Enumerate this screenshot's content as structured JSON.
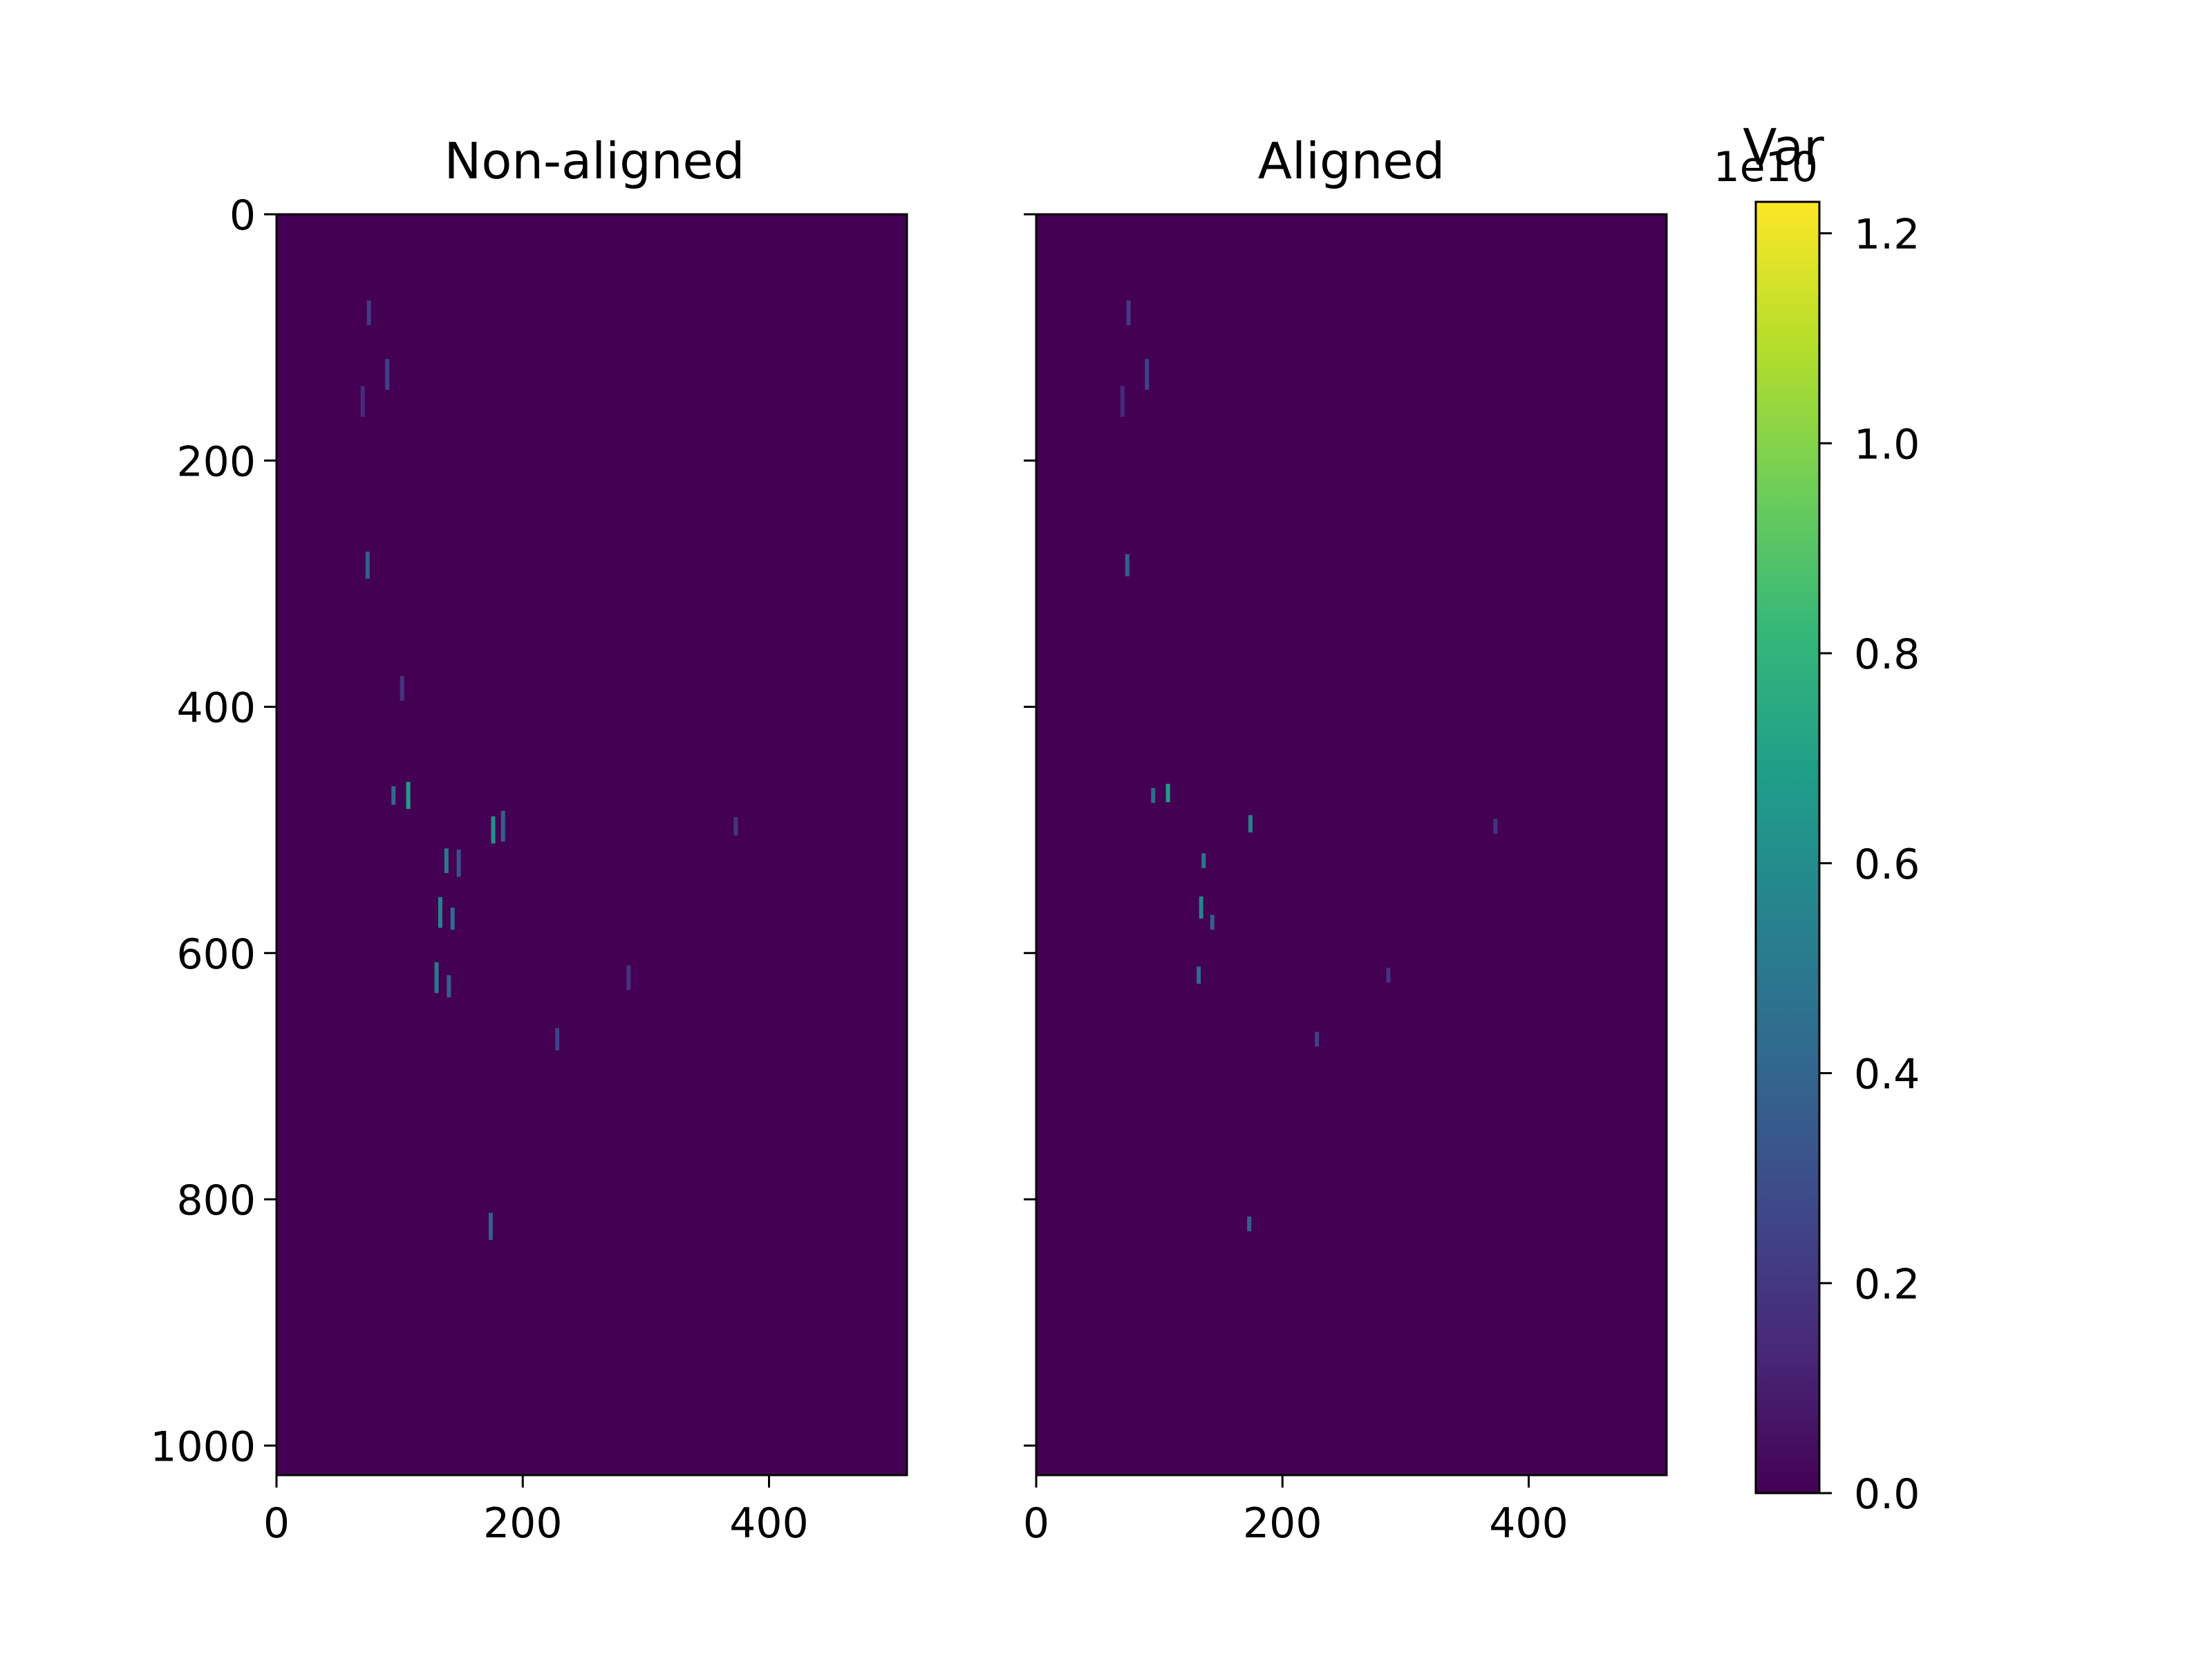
{
  "chart_data": [
    {
      "type": "heatmap",
      "title": "Non-aligned",
      "xlim": [
        0,
        512
      ],
      "ylim": [
        1024,
        0
      ],
      "xticks": [
        0,
        200,
        400
      ],
      "yticks": [
        0,
        200,
        400,
        600,
        800,
        1000
      ],
      "background_value": 0.0,
      "bright_spots": [
        {
          "x": 75,
          "y": 80,
          "h": 20,
          "v": 0.18
        },
        {
          "x": 90,
          "y": 130,
          "h": 25,
          "v": 0.2
        },
        {
          "x": 70,
          "y": 152,
          "h": 25,
          "v": 0.12
        },
        {
          "x": 74,
          "y": 285,
          "h": 22,
          "v": 0.3
        },
        {
          "x": 102,
          "y": 385,
          "h": 20,
          "v": 0.15
        },
        {
          "x": 95,
          "y": 472,
          "h": 15,
          "v": 0.35
        },
        {
          "x": 107,
          "y": 472,
          "h": 22,
          "v": 0.55
        },
        {
          "x": 176,
          "y": 500,
          "h": 22,
          "v": 0.5
        },
        {
          "x": 184,
          "y": 497,
          "h": 25,
          "v": 0.3
        },
        {
          "x": 138,
          "y": 525,
          "h": 20,
          "v": 0.4
        },
        {
          "x": 148,
          "y": 527,
          "h": 22,
          "v": 0.25
        },
        {
          "x": 133,
          "y": 567,
          "h": 25,
          "v": 0.45
        },
        {
          "x": 143,
          "y": 572,
          "h": 18,
          "v": 0.35
        },
        {
          "x": 130,
          "y": 620,
          "h": 25,
          "v": 0.4
        },
        {
          "x": 140,
          "y": 627,
          "h": 18,
          "v": 0.3
        },
        {
          "x": 228,
          "y": 670,
          "h": 18,
          "v": 0.2
        },
        {
          "x": 286,
          "y": 620,
          "h": 20,
          "v": 0.15
        },
        {
          "x": 373,
          "y": 497,
          "h": 15,
          "v": 0.15
        },
        {
          "x": 174,
          "y": 822,
          "h": 22,
          "v": 0.3
        }
      ]
    },
    {
      "type": "heatmap",
      "title": "Aligned",
      "xlim": [
        0,
        512
      ],
      "ylim": [
        1024,
        0
      ],
      "xticks": [
        0,
        200,
        400
      ],
      "yticks": [
        0,
        200,
        400,
        600,
        800,
        1000
      ],
      "background_value": 0.0,
      "bright_spots": [
        {
          "x": 75,
          "y": 80,
          "h": 20,
          "v": 0.18
        },
        {
          "x": 90,
          "y": 130,
          "h": 25,
          "v": 0.2
        },
        {
          "x": 70,
          "y": 152,
          "h": 25,
          "v": 0.12
        },
        {
          "x": 74,
          "y": 285,
          "h": 18,
          "v": 0.3
        },
        {
          "x": 95,
          "y": 472,
          "h": 12,
          "v": 0.35
        },
        {
          "x": 107,
          "y": 470,
          "h": 15,
          "v": 0.55
        },
        {
          "x": 174,
          "y": 495,
          "h": 14,
          "v": 0.45
        },
        {
          "x": 136,
          "y": 525,
          "h": 12,
          "v": 0.4
        },
        {
          "x": 134,
          "y": 563,
          "h": 18,
          "v": 0.45
        },
        {
          "x": 143,
          "y": 575,
          "h": 12,
          "v": 0.3
        },
        {
          "x": 132,
          "y": 618,
          "h": 14,
          "v": 0.35
        },
        {
          "x": 228,
          "y": 670,
          "h": 12,
          "v": 0.2
        },
        {
          "x": 286,
          "y": 618,
          "h": 12,
          "v": 0.15
        },
        {
          "x": 373,
          "y": 497,
          "h": 12,
          "v": 0.15
        },
        {
          "x": 173,
          "y": 820,
          "h": 12,
          "v": 0.3
        }
      ]
    }
  ],
  "colorbar": {
    "label": "Var",
    "offset_text": "1e10",
    "range": [
      0.0,
      1.23
    ],
    "ticks": [
      0.0,
      0.2,
      0.4,
      0.6,
      0.8,
      1.0,
      1.2
    ],
    "tick_labels": [
      "0.0",
      "0.2",
      "0.4",
      "0.6",
      "0.8",
      "1.0",
      "1.2"
    ],
    "colormap": "viridis"
  },
  "colors": {
    "viridis_stops": [
      "#440154",
      "#482878",
      "#3e4989",
      "#31688e",
      "#26828e",
      "#1f9e89",
      "#35b779",
      "#6ece58",
      "#b5de2b",
      "#fde725"
    ]
  }
}
